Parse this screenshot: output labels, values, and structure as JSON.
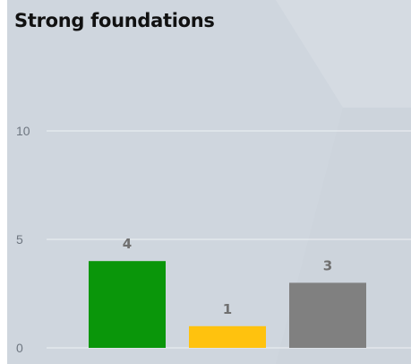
{
  "chart_data": {
    "type": "bar",
    "title": "Strong foundations",
    "categories": [
      "",
      "",
      ""
    ],
    "values": [
      4,
      1,
      3
    ],
    "bar_colors": [
      "#0a960a",
      "#ffc20e",
      "#808080"
    ],
    "ylim": [
      0,
      12
    ],
    "yticks": [
      0,
      5,
      10
    ],
    "ytick_labels": [
      "0",
      "5",
      "10"
    ],
    "grid": true,
    "legend": false
  },
  "colors": {
    "background": "#cfd6de",
    "gridline": "#eef1f4",
    "tick_text": "#6e7680",
    "data_label": "#707070",
    "title_text": "#111111"
  }
}
